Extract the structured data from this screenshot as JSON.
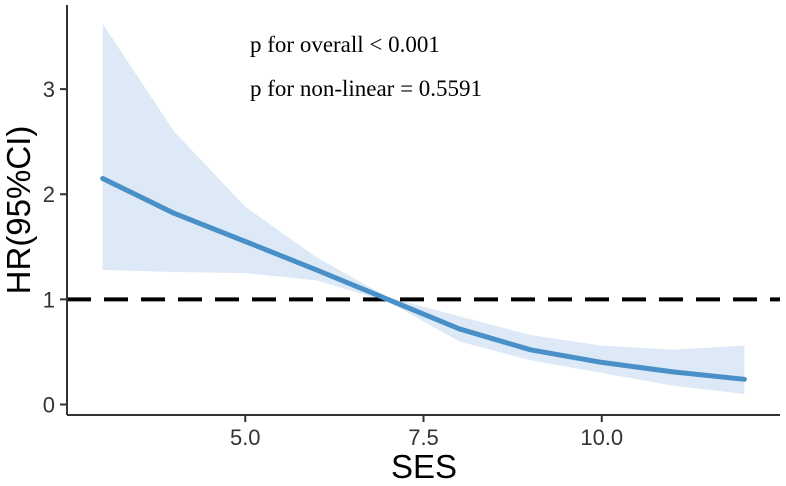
{
  "chart_data": {
    "type": "line",
    "title": "",
    "xlabel": "SES",
    "ylabel": "HR(95%CI)",
    "xlim": [
      2.5,
      12.5
    ],
    "ylim": [
      -0.1,
      3.8
    ],
    "xticks": [
      5.0,
      7.5,
      10.0
    ],
    "xtick_labels": [
      "5.0",
      "7.5",
      "10.0"
    ],
    "yticks": [
      0,
      1,
      2,
      3
    ],
    "ytick_labels": [
      "0",
      "1",
      "2",
      "3"
    ],
    "reference_line": {
      "y": 1,
      "style": "dashed",
      "color": "#000000"
    },
    "series": [
      {
        "name": "HR",
        "color": "#4a90c8",
        "x": [
          3.0,
          4.0,
          5.0,
          6.0,
          7.0,
          8.0,
          9.0,
          10.0,
          11.0,
          12.0
        ],
        "y": [
          2.15,
          1.82,
          1.55,
          1.28,
          1.0,
          0.72,
          0.52,
          0.4,
          0.31,
          0.24
        ],
        "lower": [
          1.28,
          1.26,
          1.25,
          1.18,
          0.98,
          0.6,
          0.42,
          0.3,
          0.18,
          0.1
        ],
        "upper": [
          3.62,
          2.6,
          1.88,
          1.4,
          1.02,
          0.84,
          0.66,
          0.56,
          0.52,
          0.56
        ],
        "band_color": "#dde9f6"
      }
    ],
    "annotations": [
      "p for overall < 0.001",
      "p for non-linear = 0.5591"
    ]
  }
}
